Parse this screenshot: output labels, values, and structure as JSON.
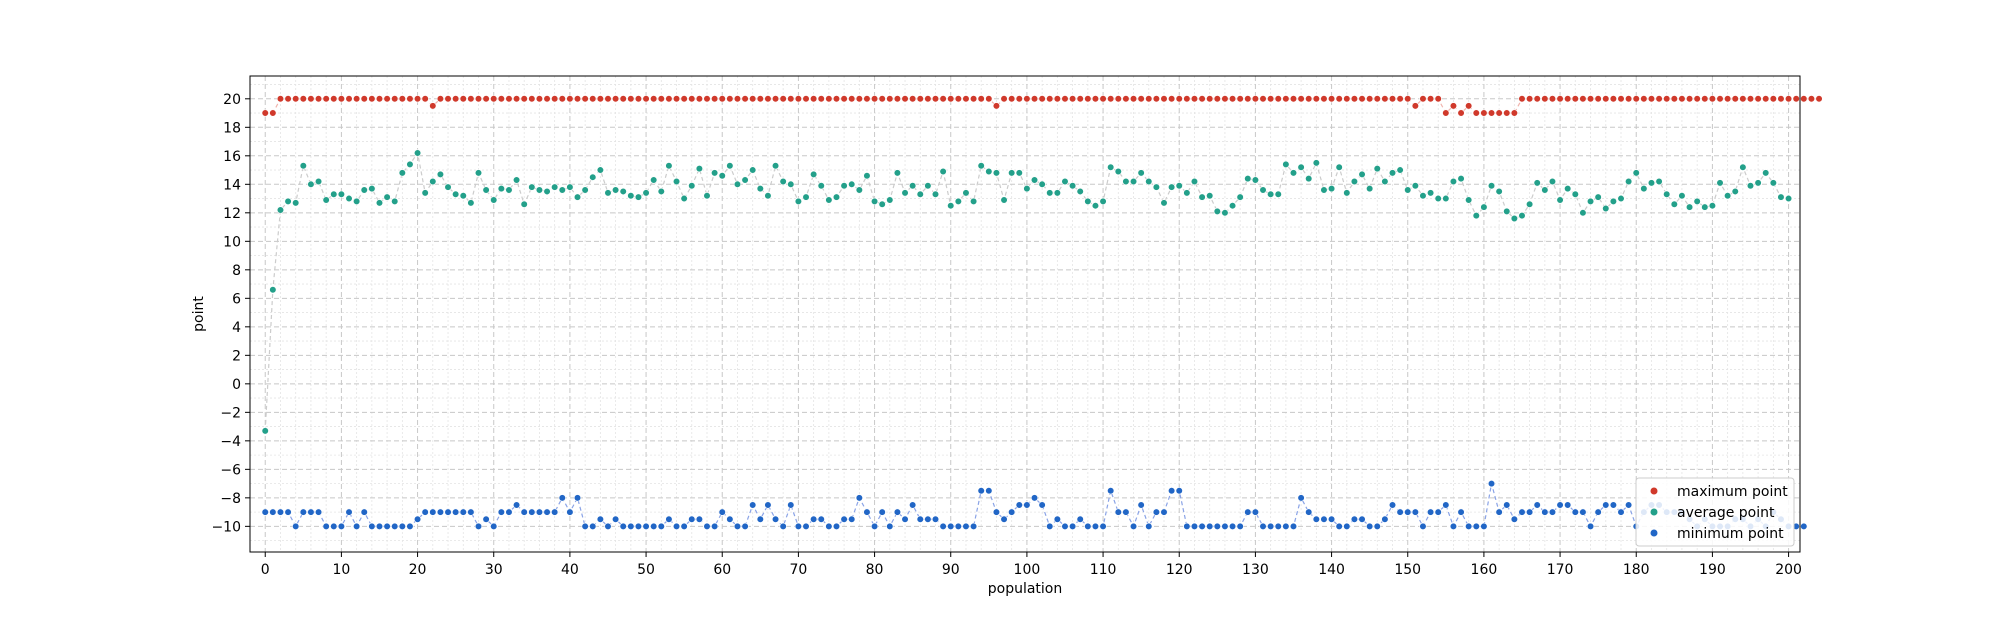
{
  "chart_data": {
    "type": "scatter",
    "xlabel": "population",
    "ylabel": "point",
    "xlim": [
      -2,
      201.5
    ],
    "ylim": [
      -11.8,
      21.6
    ],
    "xticks": [
      0,
      10,
      20,
      30,
      40,
      50,
      60,
      70,
      80,
      90,
      100,
      110,
      120,
      130,
      140,
      150,
      160,
      170,
      180,
      190,
      200
    ],
    "yticks": [
      -10,
      -8,
      -6,
      -4,
      -2,
      0,
      2,
      4,
      6,
      8,
      10,
      12,
      14,
      16,
      18,
      20
    ],
    "grid": true,
    "legend_position": "lower-right",
    "series": [
      {
        "name": "maximum point",
        "color": "#d0392b",
        "line_color": "#f0b4ad",
        "values": [
          19,
          19,
          20,
          20,
          20,
          20,
          20,
          20,
          20,
          20,
          20,
          20,
          20,
          20,
          20,
          20,
          20,
          20,
          20,
          20,
          20,
          20,
          19.5,
          20,
          20,
          20,
          20,
          20,
          20,
          20,
          20,
          20,
          20,
          20,
          20,
          20,
          20,
          20,
          20,
          20,
          20,
          20,
          20,
          20,
          20,
          20,
          20,
          20,
          20,
          20,
          20,
          20,
          20,
          20,
          20,
          20,
          20,
          20,
          20,
          20,
          20,
          20,
          20,
          20,
          20,
          20,
          20,
          20,
          20,
          20,
          20,
          20,
          20,
          20,
          20,
          20,
          20,
          20,
          20,
          20,
          20,
          20,
          20,
          20,
          20,
          20,
          20,
          20,
          20,
          20,
          20,
          20,
          20,
          20,
          20,
          20,
          19.5,
          20,
          20,
          20,
          20,
          20,
          20,
          20,
          20,
          20,
          20,
          20,
          20,
          20,
          20,
          20,
          20,
          20,
          20,
          20,
          20,
          20,
          20,
          20,
          20,
          20,
          20,
          20,
          20,
          20,
          20,
          20,
          20,
          20,
          20,
          20,
          20,
          20,
          20,
          20,
          20,
          20,
          20,
          20,
          20,
          20,
          20,
          20,
          20,
          20,
          20,
          20,
          20,
          20,
          20,
          19.5,
          20,
          20,
          20,
          19,
          19.5,
          19,
          19.5,
          19,
          19,
          19,
          19,
          19,
          19,
          20,
          20,
          20,
          20,
          20,
          20,
          20,
          20,
          20,
          20,
          20,
          20,
          20,
          20,
          20,
          20,
          20,
          20,
          20,
          20,
          20,
          20,
          20,
          20,
          20,
          20,
          20,
          20,
          20,
          20,
          20,
          20,
          20,
          20,
          20,
          20,
          20,
          20,
          20,
          20
        ]
      },
      {
        "name": "average point",
        "color": "#23a08a",
        "line_color": "#cccccc",
        "values": [
          -3.3,
          6.6,
          12.2,
          12.8,
          12.7,
          15.3,
          14,
          14.2,
          12.9,
          13.3,
          13.3,
          13,
          12.8,
          13.6,
          13.7,
          12.7,
          13.1,
          12.8,
          14.8,
          15.4,
          16.2,
          13.4,
          14.2,
          14.7,
          13.8,
          13.3,
          13.2,
          12.7,
          14.8,
          13.6,
          12.9,
          13.7,
          13.6,
          14.3,
          12.6,
          13.8,
          13.6,
          13.5,
          13.8,
          13.6,
          13.8,
          13.1,
          13.6,
          14.5,
          15,
          13.4,
          13.6,
          13.5,
          13.2,
          13.1,
          13.4,
          14.3,
          13.5,
          15.3,
          14.2,
          13,
          13.9,
          15.1,
          13.2,
          14.8,
          14.6,
          15.3,
          14,
          14.3,
          15,
          13.7,
          13.2,
          15.3,
          14.2,
          14,
          12.8,
          13.1,
          14.7,
          13.9,
          12.9,
          13.1,
          13.9,
          14,
          13.6,
          14.6,
          12.8,
          12.6,
          12.9,
          14.8,
          13.4,
          13.9,
          13.3,
          13.9,
          13.3,
          14.9,
          12.5,
          12.8,
          13.4,
          12.8,
          15.3,
          14.9,
          14.8,
          12.9,
          14.8,
          14.8,
          13.7,
          14.3,
          14,
          13.4,
          13.4,
          14.2,
          13.9,
          13.5,
          12.8,
          12.5,
          12.8,
          15.2,
          14.9,
          14.2,
          14.2,
          14.8,
          14.2,
          13.8,
          12.7,
          13.8,
          13.9,
          13.4,
          14.2,
          13.1,
          13.2,
          12.1,
          12,
          12.5,
          13.1,
          14.4,
          14.3,
          13.6,
          13.3,
          13.3,
          15.4,
          14.8,
          15.2,
          14.4,
          15.5,
          13.6,
          13.7,
          15.2,
          13.4,
          14.2,
          14.7,
          13.7,
          15.1,
          14.2,
          14.8,
          15,
          13.6,
          13.9,
          13.2,
          13.4,
          13,
          13,
          14.2,
          14.4,
          12.9,
          11.8,
          12.4,
          13.9,
          13.5,
          12.1,
          11.6,
          11.8,
          12.6,
          14.1,
          13.6,
          14.2,
          12.9,
          13.7,
          13.3,
          12,
          12.8,
          13.1,
          12.3,
          12.8,
          13,
          14.2,
          14.8,
          13.7,
          14.1,
          14.2,
          13.3,
          12.6,
          13.2,
          12.4,
          12.8,
          12.4,
          12.5,
          14.1,
          13.2,
          13.5,
          15.2,
          13.9,
          14.1,
          14.8,
          14.1,
          13.1,
          13
        ]
      },
      {
        "name": "minimum point",
        "color": "#2166c6",
        "line_color": "#8aa3e6",
        "values": [
          -9,
          -9,
          -9,
          -9,
          -10,
          -9,
          -9,
          -9,
          -10,
          -10,
          -10,
          -9,
          -10,
          -9,
          -10,
          -10,
          -10,
          -10,
          -10,
          -10,
          -9.5,
          -9,
          -9,
          -9,
          -9,
          -9,
          -9,
          -9,
          -10,
          -9.5,
          -10,
          -9,
          -9,
          -8.5,
          -9,
          -9,
          -9,
          -9,
          -9,
          -8,
          -9,
          -8,
          -10,
          -10,
          -9.5,
          -10,
          -9.5,
          -10,
          -10,
          -10,
          -10,
          -10,
          -10,
          -9.5,
          -10,
          -10,
          -9.5,
          -9.5,
          -10,
          -10,
          -9,
          -9.5,
          -10,
          -10,
          -8.5,
          -9.5,
          -8.5,
          -9.5,
          -10,
          -8.5,
          -10,
          -10,
          -9.5,
          -9.5,
          -10,
          -10,
          -9.5,
          -9.5,
          -8,
          -9,
          -10,
          -9,
          -10,
          -9,
          -9.5,
          -8.5,
          -9.5,
          -9.5,
          -9.5,
          -10,
          -10,
          -10,
          -10,
          -10,
          -7.5,
          -7.5,
          -9,
          -9.5,
          -9,
          -8.5,
          -8.5,
          -8,
          -8.5,
          -10,
          -9.5,
          -10,
          -10,
          -9.5,
          -10,
          -10,
          -10,
          -7.5,
          -9,
          -9,
          -10,
          -8.5,
          -10,
          -9,
          -9,
          -7.5,
          -7.5,
          -10,
          -10,
          -10,
          -10,
          -10,
          -10,
          -10,
          -10,
          -9,
          -9,
          -10,
          -10,
          -10,
          -10,
          -10,
          -8,
          -9,
          -9.5,
          -9.5,
          -9.5,
          -10,
          -10,
          -9.5,
          -9.5,
          -10,
          -10,
          -9.5,
          -8.5,
          -9,
          -9,
          -9,
          -10,
          -9,
          -9,
          -8.5,
          -10,
          -9,
          -10,
          -10,
          -10,
          -7,
          -9,
          -8.5,
          -9.5,
          -9,
          -9,
          -8.5,
          -9,
          -9,
          -8.5,
          -8.5,
          -9,
          -9,
          -10,
          -9,
          -8.5,
          -8.5,
          -9,
          -8.5,
          -10,
          -9,
          -8.5,
          -8.5,
          -9,
          -9,
          -9,
          -9.5,
          -10,
          -9.5,
          -10,
          -10,
          -10,
          -9.5,
          -9.5,
          -10,
          -9.5,
          -10,
          -9,
          -9.5,
          -10,
          -10,
          -10
        ]
      }
    ]
  }
}
